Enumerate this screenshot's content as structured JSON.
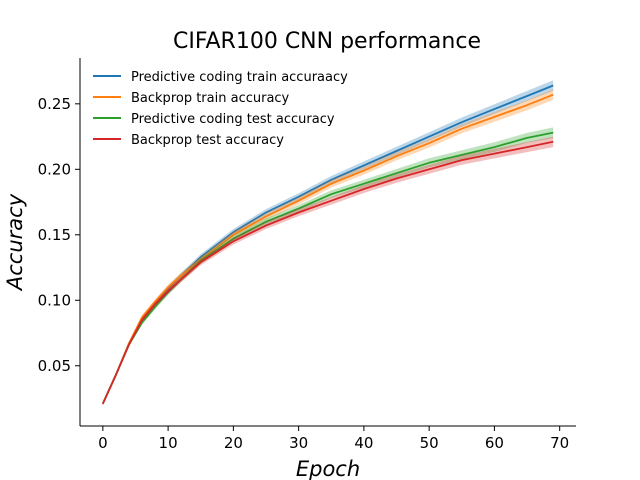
{
  "chart_data": {
    "type": "line",
    "title": "CIFAR100 CNN performance",
    "xlabel": "Epoch",
    "ylabel": "Accuracy",
    "xlim": [
      -3.5,
      72.5
    ],
    "ylim": [
      0.004,
      0.285
    ],
    "xticks": [
      0,
      10,
      20,
      30,
      40,
      50,
      60,
      70
    ],
    "yticks": [
      0.05,
      0.1,
      0.15,
      0.2,
      0.25
    ],
    "ytick_labels": [
      "0.05",
      "0.10",
      "0.15",
      "0.20",
      "0.25"
    ],
    "grid": false,
    "legend_position": "top-left",
    "x": [
      0,
      2,
      4,
      6,
      8,
      10,
      12,
      15,
      20,
      25,
      30,
      35,
      40,
      45,
      50,
      55,
      60,
      65,
      69
    ],
    "series": [
      {
        "name": "Predictive coding train accuraacy",
        "color": "#1f77b4",
        "band": 0.004,
        "values": [
          0.021,
          0.043,
          0.067,
          0.085,
          0.098,
          0.109,
          0.119,
          0.133,
          0.152,
          0.167,
          0.179,
          0.192,
          0.203,
          0.214,
          0.225,
          0.236,
          0.246,
          0.256,
          0.264
        ]
      },
      {
        "name": "Backprop train accuracy",
        "color": "#ff7f0e",
        "band": 0.004,
        "values": [
          0.021,
          0.043,
          0.067,
          0.087,
          0.099,
          0.11,
          0.119,
          0.131,
          0.15,
          0.164,
          0.176,
          0.189,
          0.199,
          0.21,
          0.22,
          0.231,
          0.24,
          0.249,
          0.257
        ]
      },
      {
        "name": "Predictive coding test accuracy",
        "color": "#2ca02c",
        "band": 0.004,
        "values": [
          0.021,
          0.043,
          0.066,
          0.083,
          0.095,
          0.106,
          0.116,
          0.13,
          0.147,
          0.16,
          0.17,
          0.181,
          0.189,
          0.197,
          0.205,
          0.211,
          0.217,
          0.224,
          0.228
        ]
      },
      {
        "name": "Backprop test accuracy",
        "color": "#d62728",
        "band": 0.004,
        "values": [
          0.021,
          0.043,
          0.066,
          0.085,
          0.097,
          0.107,
          0.116,
          0.129,
          0.145,
          0.157,
          0.167,
          0.176,
          0.185,
          0.193,
          0.2,
          0.207,
          0.212,
          0.217,
          0.221
        ]
      }
    ]
  }
}
